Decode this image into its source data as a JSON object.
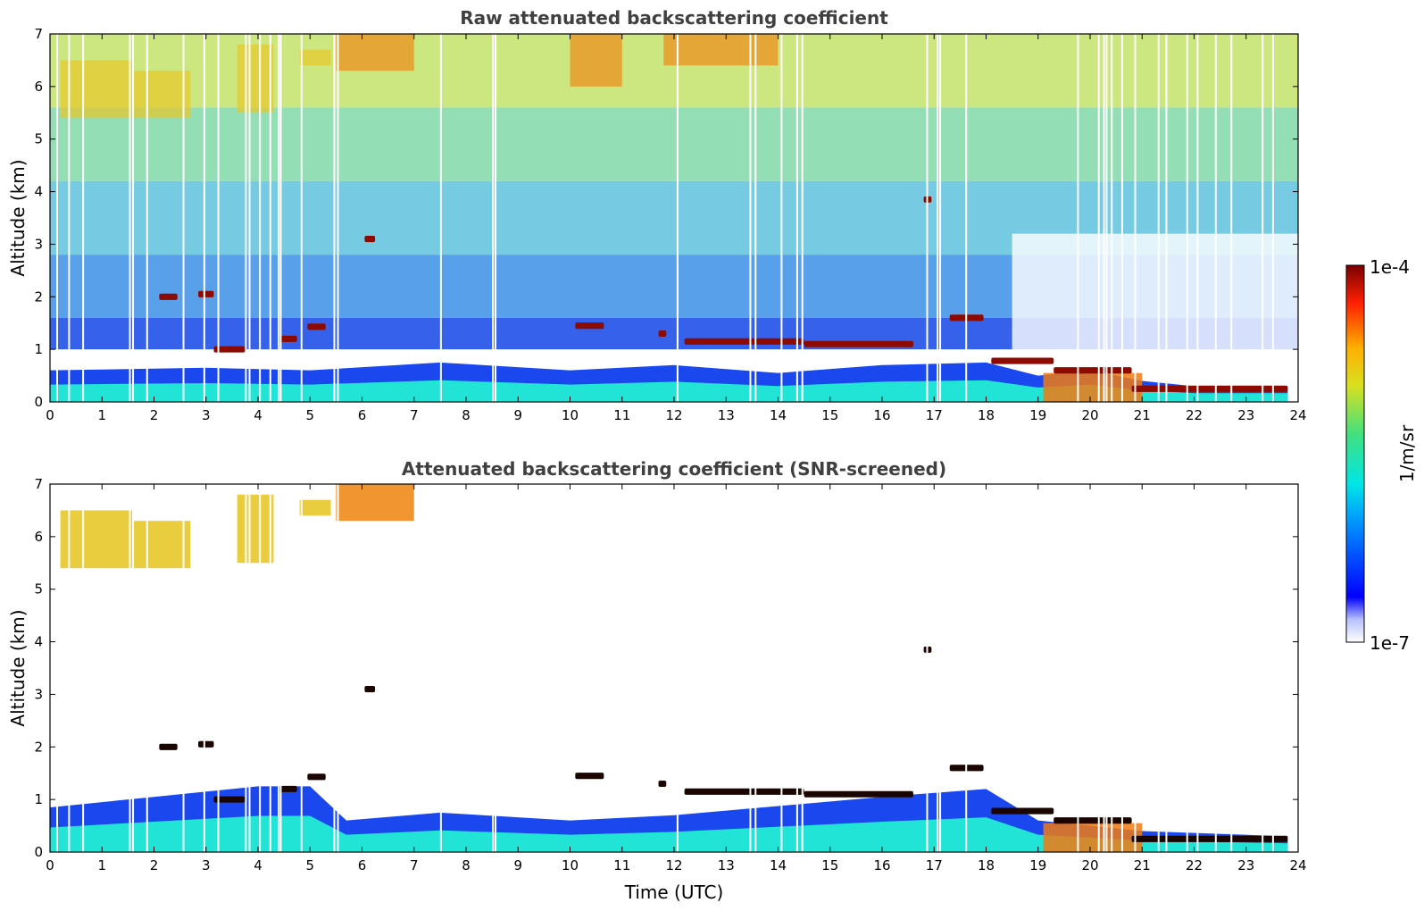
{
  "figure": {
    "colorbar": {
      "max_label": "1e-4",
      "min_label": "1e-7",
      "unit_label": "1/m/sr",
      "scale": "log"
    }
  },
  "chart_data": [
    {
      "type": "heatmap",
      "title": "Raw attenuated backscattering coefficient",
      "xlabel": "",
      "ylabel": "Altitude (km)",
      "xlim": [
        0,
        24
      ],
      "ylim": [
        0,
        7
      ],
      "x_ticks": [
        "0",
        "1",
        "2",
        "3",
        "4",
        "5",
        "6",
        "7",
        "8",
        "9",
        "10",
        "11",
        "12",
        "13",
        "14",
        "15",
        "16",
        "17",
        "18",
        "19",
        "20",
        "21",
        "22",
        "23",
        "24"
      ],
      "y_ticks": [
        "0",
        "1",
        "2",
        "3",
        "4",
        "5",
        "6",
        "7"
      ],
      "colormap": "jet",
      "color_scale": "log",
      "color_range": [
        1e-07,
        0.0001
      ],
      "boundary_layer_top_km": [
        [
          0,
          0.6
        ],
        [
          3,
          0.65
        ],
        [
          5,
          0.6
        ],
        [
          7.5,
          0.75
        ],
        [
          10,
          0.6
        ],
        [
          12,
          0.7
        ],
        [
          14,
          0.55
        ],
        [
          16,
          0.7
        ],
        [
          18,
          0.75
        ],
        [
          19,
          0.5
        ],
        [
          20,
          0.6
        ],
        [
          21,
          0.4
        ],
        [
          22,
          0.3
        ],
        [
          23.8,
          0.3
        ]
      ],
      "cloud_layers": [
        {
          "t_start": 2.1,
          "t_end": 2.45,
          "alt_km": 2.0
        },
        {
          "t_start": 2.85,
          "t_end": 3.15,
          "alt_km": 2.05
        },
        {
          "t_start": 3.15,
          "t_end": 3.75,
          "alt_km": 1.0
        },
        {
          "t_start": 4.4,
          "t_end": 4.75,
          "alt_km": 1.2
        },
        {
          "t_start": 4.95,
          "t_end": 5.3,
          "alt_km": 1.43
        },
        {
          "t_start": 6.05,
          "t_end": 6.25,
          "alt_km": 3.1
        },
        {
          "t_start": 10.1,
          "t_end": 10.65,
          "alt_km": 1.45
        },
        {
          "t_start": 11.7,
          "t_end": 11.85,
          "alt_km": 1.3
        },
        {
          "t_start": 12.2,
          "t_end": 14.5,
          "alt_km": 1.15
        },
        {
          "t_start": 14.5,
          "t_end": 16.6,
          "alt_km": 1.1
        },
        {
          "t_start": 16.8,
          "t_end": 16.95,
          "alt_km": 3.85
        },
        {
          "t_start": 17.3,
          "t_end": 17.95,
          "alt_km": 1.6
        },
        {
          "t_start": 18.1,
          "t_end": 19.3,
          "alt_km": 0.78
        },
        {
          "t_start": 19.3,
          "t_end": 20.8,
          "alt_km": 0.6
        },
        {
          "t_start": 20.8,
          "t_end": 23.8,
          "alt_km": 0.25
        }
      ],
      "aerosol_layers": [
        {
          "t_start": 0.2,
          "t_end": 1.6,
          "alt_top_km": 6.5,
          "alt_bottom_km": 5.4
        },
        {
          "t_start": 1.6,
          "t_end": 2.7,
          "alt_top_km": 6.3,
          "alt_bottom_km": 5.4
        },
        {
          "t_start": 3.6,
          "t_end": 4.3,
          "alt_top_km": 6.8,
          "alt_bottom_km": 5.5
        },
        {
          "t_start": 4.8,
          "t_end": 5.4,
          "alt_top_km": 6.7,
          "alt_bottom_km": 6.4
        },
        {
          "t_start": 5.5,
          "t_end": 7.0,
          "alt_top_km": 7.0,
          "alt_bottom_km": 6.3
        },
        {
          "t_start": 10.0,
          "t_end": 11.0,
          "alt_top_km": 7.0,
          "alt_bottom_km": 6.0
        },
        {
          "t_start": 11.8,
          "t_end": 14.0,
          "alt_top_km": 7.0,
          "alt_bottom_km": 6.4
        }
      ],
      "missing_profiles_h": [
        0.12,
        0.35,
        0.62,
        1.52,
        1.58,
        1.85,
        2.55,
        2.95,
        3.22,
        3.75,
        3.82,
        4.02,
        4.22,
        4.38,
        4.42,
        4.82,
        5.45,
        5.52,
        7.5,
        8.5,
        8.55,
        12.05,
        13.45,
        13.55,
        14.05,
        14.35,
        14.45,
        16.85,
        17.05,
        17.1,
        17.6,
        19.75,
        20.15,
        20.25,
        20.3,
        20.4,
        20.6,
        20.85,
        21.3,
        21.45,
        21.85,
        22.05,
        22.4,
        22.7,
        23.3,
        23.5
      ]
    },
    {
      "type": "heatmap",
      "title": "Attenuated backscattering coefficient (SNR-screened)",
      "xlabel": "Time (UTC)",
      "ylabel": "Altitude (km)",
      "xlim": [
        0,
        24
      ],
      "ylim": [
        0,
        7
      ],
      "x_ticks": [
        "0",
        "1",
        "2",
        "3",
        "4",
        "5",
        "6",
        "7",
        "8",
        "9",
        "10",
        "11",
        "12",
        "13",
        "14",
        "15",
        "16",
        "17",
        "18",
        "19",
        "20",
        "21",
        "22",
        "23",
        "24"
      ],
      "y_ticks": [
        "0",
        "1",
        "2",
        "3",
        "4",
        "5",
        "6",
        "7"
      ],
      "colormap": "jet",
      "color_scale": "log",
      "color_range": [
        1e-07,
        0.0001
      ],
      "screened": true,
      "boundary_layer_top_km": [
        [
          0,
          0.85
        ],
        [
          2,
          1.05
        ],
        [
          4,
          1.25
        ],
        [
          5,
          1.25
        ],
        [
          5.7,
          0.6
        ],
        [
          7.5,
          0.75
        ],
        [
          10,
          0.6
        ],
        [
          12,
          0.7
        ],
        [
          16,
          1.05
        ],
        [
          18,
          1.2
        ],
        [
          19,
          0.6
        ],
        [
          21,
          0.4
        ],
        [
          23.8,
          0.3
        ]
      ]
    }
  ]
}
